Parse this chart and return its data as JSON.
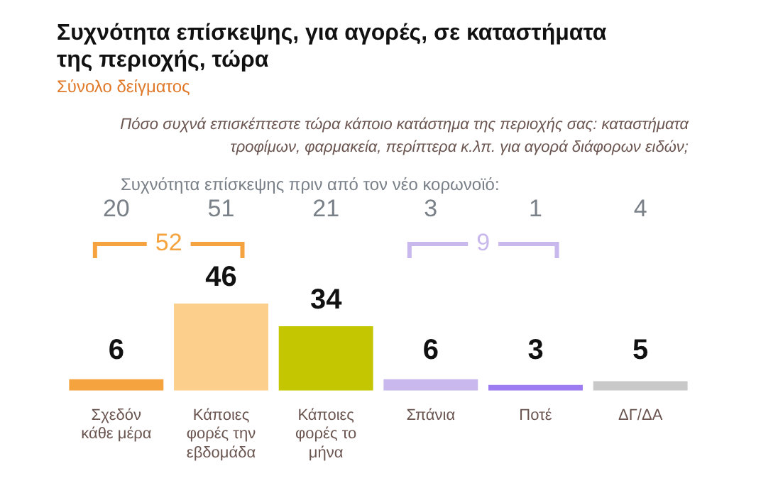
{
  "chart_data": {
    "type": "bar",
    "title": "Συχνότητα επίσκεψης, για αγορές, σε καταστήματα της περιοχής, τώρα",
    "subtitle": "Σύνολο δείγματος",
    "categories": [
      "Σχεδόν κάθε μέρα",
      "Κάποιες φορές την εβδομάδα",
      "Κάποιες φορές το μήνα",
      "Σπάνια",
      "Ποτέ",
      "ΔΓ/ΔΑ"
    ],
    "values": [
      6,
      46,
      34,
      6,
      3,
      5
    ],
    "colors": [
      "#f5a33f",
      "#fcd08c",
      "#c3c600",
      "#c8b8ee",
      "#9d7cf2",
      "#c9c9c9"
    ],
    "data_labels": true,
    "tick_labels": "x",
    "grid": false,
    "legend": false,
    "annotations": [
      "Πόσο συχνά επισκέπτεστε τώρα κάποιο κατάστημα της περιοχής σας: καταστήματα τροφίμων, φαρμακεία, περίπτερα κ.λπ. για αγορά διάφορων ειδών;",
      "Συχνότητα επίσκεψης πριν από τον νέο κορωνοϊό:",
      "20",
      "51",
      "21",
      "3",
      "1",
      "4",
      "52",
      "9"
    ]
  }
}
